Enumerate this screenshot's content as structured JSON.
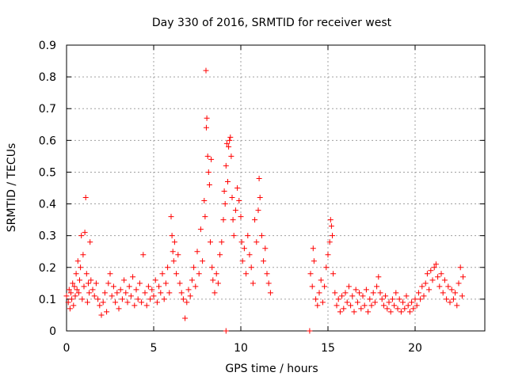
{
  "chart_data": {
    "type": "scatter",
    "title": "Day 330 of 2016, SRMTID for receiver west",
    "xlabel": "GPS time / hours",
    "ylabel": "SRMTID / TECUs",
    "xlim": [
      0,
      24
    ],
    "ylim": [
      0,
      0.9
    ],
    "xticks": [
      0,
      5,
      10,
      15,
      20
    ],
    "xtick_labels": [
      "0",
      "5",
      "10",
      "15",
      "20"
    ],
    "yticks": [
      0,
      0.1,
      0.2,
      0.3,
      0.4,
      0.5,
      0.6,
      0.7,
      0.8,
      0.9
    ],
    "ytick_labels": [
      "0",
      "0.1",
      "0.2",
      "0.3",
      "0.4",
      "0.5",
      "0.6",
      "0.7",
      "0.8",
      "0.9"
    ],
    "grid": true,
    "marker": "+",
    "color": "#ff0000",
    "series": [
      {
        "name": "SRMTID",
        "points": [
          [
            0.0,
            0.11
          ],
          [
            0.1,
            0.09
          ],
          [
            0.15,
            0.13
          ],
          [
            0.2,
            0.07
          ],
          [
            0.25,
            0.12
          ],
          [
            0.3,
            0.1
          ],
          [
            0.35,
            0.15
          ],
          [
            0.4,
            0.08
          ],
          [
            0.45,
            0.14
          ],
          [
            0.5,
            0.11
          ],
          [
            0.55,
            0.18
          ],
          [
            0.6,
            0.13
          ],
          [
            0.65,
            0.22
          ],
          [
            0.7,
            0.12
          ],
          [
            0.75,
            0.16
          ],
          [
            0.8,
            0.2
          ],
          [
            0.85,
            0.3
          ],
          [
            0.9,
            0.1
          ],
          [
            0.95,
            0.24
          ],
          [
            1.0,
            0.14
          ],
          [
            1.05,
            0.31
          ],
          [
            1.1,
            0.42
          ],
          [
            1.15,
            0.18
          ],
          [
            1.2,
            0.09
          ],
          [
            1.25,
            0.15
          ],
          [
            1.3,
            0.12
          ],
          [
            1.35,
            0.28
          ],
          [
            1.4,
            0.16
          ],
          [
            1.5,
            0.13
          ],
          [
            1.6,
            0.11
          ],
          [
            1.7,
            0.15
          ],
          [
            1.8,
            0.1
          ],
          [
            1.9,
            0.08
          ],
          [
            2.0,
            0.05
          ],
          [
            2.1,
            0.09
          ],
          [
            2.2,
            0.12
          ],
          [
            2.3,
            0.06
          ],
          [
            2.4,
            0.15
          ],
          [
            2.5,
            0.18
          ],
          [
            2.6,
            0.11
          ],
          [
            2.7,
            0.14
          ],
          [
            2.8,
            0.09
          ],
          [
            2.9,
            0.12
          ],
          [
            3.0,
            0.07
          ],
          [
            3.1,
            0.13
          ],
          [
            3.2,
            0.1
          ],
          [
            3.3,
            0.16
          ],
          [
            3.4,
            0.12
          ],
          [
            3.5,
            0.09
          ],
          [
            3.6,
            0.14
          ],
          [
            3.7,
            0.11
          ],
          [
            3.8,
            0.17
          ],
          [
            3.9,
            0.08
          ],
          [
            4.0,
            0.13
          ],
          [
            4.1,
            0.1
          ],
          [
            4.2,
            0.15
          ],
          [
            4.3,
            0.09
          ],
          [
            4.4,
            0.24
          ],
          [
            4.5,
            0.12
          ],
          [
            4.6,
            0.08
          ],
          [
            4.7,
            0.14
          ],
          [
            4.8,
            0.1
          ],
          [
            4.9,
            0.13
          ],
          [
            5.0,
            0.11
          ],
          [
            5.1,
            0.16
          ],
          [
            5.2,
            0.09
          ],
          [
            5.3,
            0.14
          ],
          [
            5.4,
            0.12
          ],
          [
            5.5,
            0.18
          ],
          [
            5.6,
            0.1
          ],
          [
            5.7,
            0.15
          ],
          [
            5.8,
            0.2
          ],
          [
            5.9,
            0.12
          ],
          [
            6.0,
            0.36
          ],
          [
            6.05,
            0.3
          ],
          [
            6.1,
            0.25
          ],
          [
            6.15,
            0.22
          ],
          [
            6.2,
            0.28
          ],
          [
            6.3,
            0.18
          ],
          [
            6.4,
            0.24
          ],
          [
            6.5,
            0.15
          ],
          [
            6.6,
            0.12
          ],
          [
            6.7,
            0.1
          ],
          [
            6.8,
            0.04
          ],
          [
            6.9,
            0.09
          ],
          [
            7.0,
            0.13
          ],
          [
            7.1,
            0.11
          ],
          [
            7.2,
            0.16
          ],
          [
            7.3,
            0.2
          ],
          [
            7.4,
            0.14
          ],
          [
            7.5,
            0.25
          ],
          [
            7.6,
            0.18
          ],
          [
            7.7,
            0.32
          ],
          [
            7.8,
            0.22
          ],
          [
            7.9,
            0.41
          ],
          [
            7.95,
            0.36
          ],
          [
            8.0,
            0.82
          ],
          [
            8.02,
            0.64
          ],
          [
            8.05,
            0.67
          ],
          [
            8.1,
            0.55
          ],
          [
            8.15,
            0.5
          ],
          [
            8.2,
            0.46
          ],
          [
            8.25,
            0.28
          ],
          [
            8.3,
            0.54
          ],
          [
            8.35,
            0.2
          ],
          [
            8.4,
            0.16
          ],
          [
            8.5,
            0.12
          ],
          [
            8.6,
            0.18
          ],
          [
            8.7,
            0.15
          ],
          [
            8.8,
            0.24
          ],
          [
            8.9,
            0.28
          ],
          [
            9.0,
            0.35
          ],
          [
            9.05,
            0.44
          ],
          [
            9.1,
            0.4
          ],
          [
            9.15,
            0.52
          ],
          [
            9.2,
            0.59
          ],
          [
            9.25,
            0.47
          ],
          [
            9.3,
            0.58
          ],
          [
            9.35,
            0.6
          ],
          [
            9.4,
            0.61
          ],
          [
            9.45,
            0.55
          ],
          [
            9.5,
            0.42
          ],
          [
            9.55,
            0.35
          ],
          [
            9.6,
            0.3
          ],
          [
            9.7,
            0.38
          ],
          [
            9.8,
            0.45
          ],
          [
            9.9,
            0.41
          ],
          [
            10.0,
            0.36
          ],
          [
            10.05,
            0.28
          ],
          [
            10.1,
            0.22
          ],
          [
            10.2,
            0.26
          ],
          [
            10.3,
            0.18
          ],
          [
            10.4,
            0.3
          ],
          [
            10.5,
            0.24
          ],
          [
            10.6,
            0.2
          ],
          [
            10.7,
            0.15
          ],
          [
            10.8,
            0.35
          ],
          [
            10.9,
            0.28
          ],
          [
            11.0,
            0.38
          ],
          [
            11.05,
            0.48
          ],
          [
            11.1,
            0.42
          ],
          [
            11.2,
            0.3
          ],
          [
            11.3,
            0.22
          ],
          [
            11.4,
            0.26
          ],
          [
            11.5,
            0.18
          ],
          [
            11.6,
            0.15
          ],
          [
            11.7,
            0.12
          ],
          [
            14.0,
            0.18
          ],
          [
            14.1,
            0.14
          ],
          [
            14.15,
            0.26
          ],
          [
            14.2,
            0.22
          ],
          [
            14.3,
            0.1
          ],
          [
            14.4,
            0.08
          ],
          [
            14.5,
            0.12
          ],
          [
            14.6,
            0.16
          ],
          [
            14.7,
            0.09
          ],
          [
            14.8,
            0.14
          ],
          [
            14.9,
            0.2
          ],
          [
            15.0,
            0.24
          ],
          [
            15.1,
            0.28
          ],
          [
            15.15,
            0.35
          ],
          [
            15.2,
            0.33
          ],
          [
            15.25,
            0.3
          ],
          [
            15.3,
            0.18
          ],
          [
            15.4,
            0.12
          ],
          [
            15.5,
            0.08
          ],
          [
            15.6,
            0.1
          ],
          [
            15.7,
            0.06
          ],
          [
            15.8,
            0.11
          ],
          [
            15.9,
            0.07
          ],
          [
            16.0,
            0.12
          ],
          [
            16.1,
            0.09
          ],
          [
            16.2,
            0.14
          ],
          [
            16.3,
            0.08
          ],
          [
            16.4,
            0.11
          ],
          [
            16.5,
            0.06
          ],
          [
            16.6,
            0.13
          ],
          [
            16.7,
            0.09
          ],
          [
            16.8,
            0.12
          ],
          [
            16.9,
            0.07
          ],
          [
            17.0,
            0.11
          ],
          [
            17.1,
            0.08
          ],
          [
            17.2,
            0.13
          ],
          [
            17.3,
            0.06
          ],
          [
            17.4,
            0.1
          ],
          [
            17.5,
            0.08
          ],
          [
            17.6,
            0.12
          ],
          [
            17.7,
            0.09
          ],
          [
            17.8,
            0.14
          ],
          [
            17.9,
            0.17
          ],
          [
            18.0,
            0.12
          ],
          [
            18.1,
            0.1
          ],
          [
            18.2,
            0.08
          ],
          [
            18.3,
            0.11
          ],
          [
            18.4,
            0.07
          ],
          [
            18.5,
            0.09
          ],
          [
            18.6,
            0.06
          ],
          [
            18.7,
            0.1
          ],
          [
            18.8,
            0.08
          ],
          [
            18.9,
            0.12
          ],
          [
            19.0,
            0.07
          ],
          [
            19.1,
            0.1
          ],
          [
            19.2,
            0.06
          ],
          [
            19.3,
            0.09
          ],
          [
            19.4,
            0.07
          ],
          [
            19.5,
            0.11
          ],
          [
            19.6,
            0.08
          ],
          [
            19.7,
            0.06
          ],
          [
            19.8,
            0.09
          ],
          [
            19.9,
            0.07
          ],
          [
            20.0,
            0.1
          ],
          [
            20.1,
            0.08
          ],
          [
            20.2,
            0.12
          ],
          [
            20.3,
            0.1
          ],
          [
            20.4,
            0.14
          ],
          [
            20.5,
            0.11
          ],
          [
            20.6,
            0.15
          ],
          [
            20.7,
            0.18
          ],
          [
            20.8,
            0.13
          ],
          [
            20.9,
            0.19
          ],
          [
            21.0,
            0.16
          ],
          [
            21.1,
            0.2
          ],
          [
            21.2,
            0.21
          ],
          [
            21.3,
            0.17
          ],
          [
            21.4,
            0.14
          ],
          [
            21.5,
            0.18
          ],
          [
            21.6,
            0.12
          ],
          [
            21.7,
            0.16
          ],
          [
            21.8,
            0.1
          ],
          [
            21.9,
            0.14
          ],
          [
            22.0,
            0.09
          ],
          [
            22.1,
            0.13
          ],
          [
            22.2,
            0.1
          ],
          [
            22.3,
            0.12
          ],
          [
            22.4,
            0.08
          ],
          [
            22.5,
            0.15
          ],
          [
            22.6,
            0.2
          ],
          [
            22.7,
            0.11
          ],
          [
            22.75,
            0.17
          ],
          [
            9.15,
            0.0
          ],
          [
            13.95,
            0.0
          ]
        ]
      }
    ]
  }
}
